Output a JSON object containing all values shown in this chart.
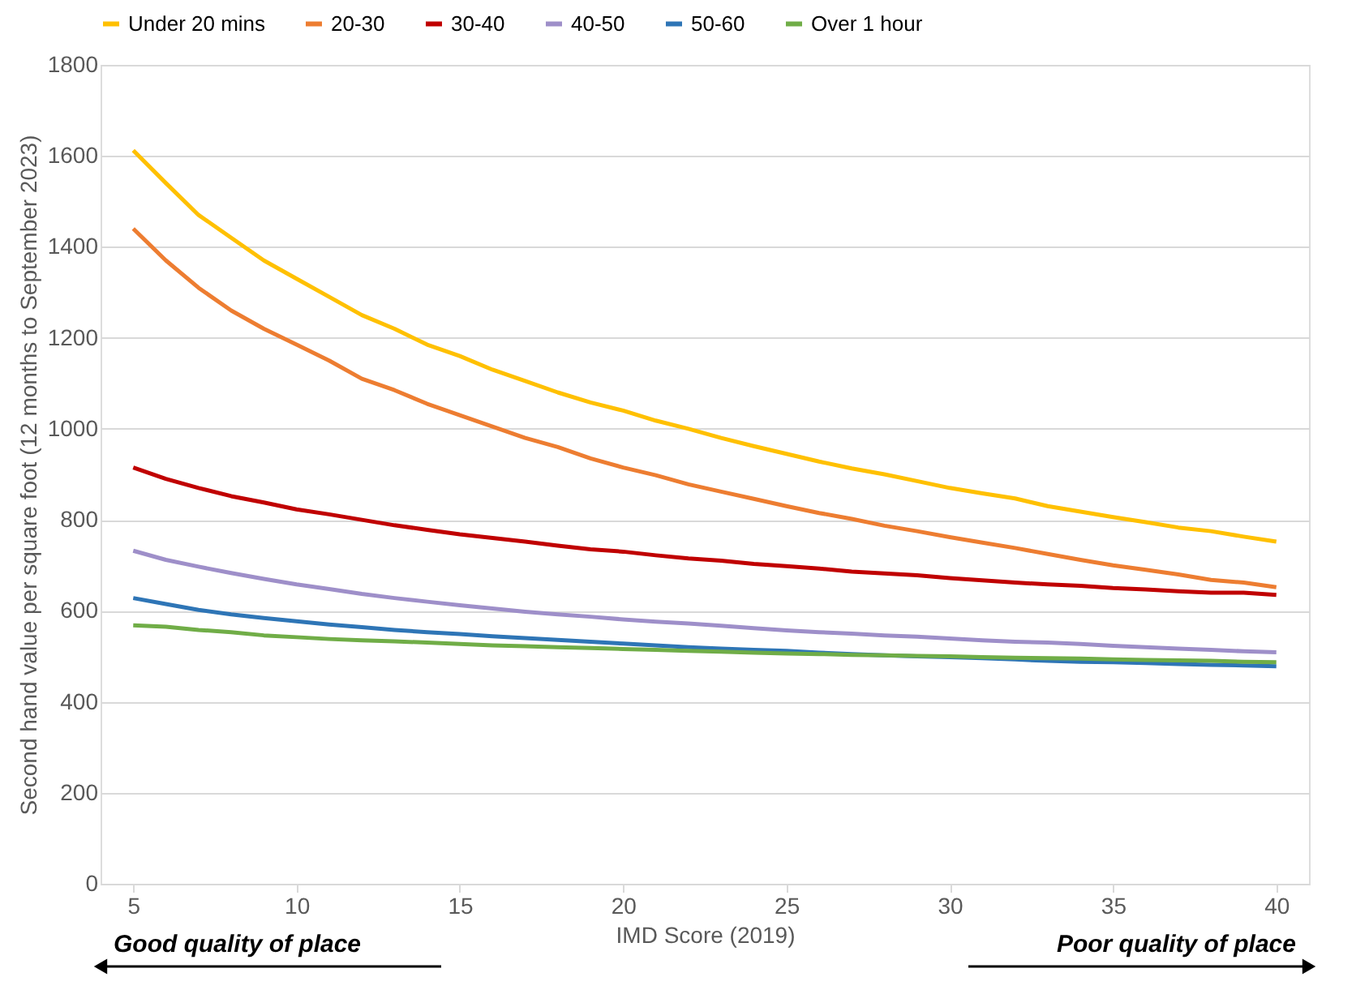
{
  "chart_data": {
    "type": "line",
    "xlabel": "IMD Score (2019)",
    "ylabel": "Second hand value per square foot (12 months to September 2023)",
    "x": [
      5,
      6,
      7,
      8,
      9,
      10,
      11,
      12,
      13,
      14,
      15,
      16,
      17,
      18,
      19,
      20,
      21,
      22,
      23,
      24,
      25,
      26,
      27,
      28,
      29,
      30,
      31,
      32,
      33,
      34,
      35,
      36,
      37,
      38,
      39,
      40
    ],
    "xlim": [
      4,
      41
    ],
    "xticks": [
      5,
      10,
      15,
      20,
      25,
      30,
      35,
      40
    ],
    "ylim": [
      0,
      1800
    ],
    "yticks": [
      0,
      200,
      400,
      600,
      800,
      1000,
      1200,
      1400,
      1600,
      1800
    ],
    "grid": "y",
    "legend": "top",
    "marker": "none",
    "line_style": "solid",
    "series": [
      {
        "name": "Under 20 mins",
        "color": "#ffc000",
        "values": [
          1612,
          1540,
          1470,
          1420,
          1370,
          1330,
          1290,
          1250,
          1220,
          1185,
          1160,
          1130,
          1105,
          1080,
          1058,
          1040,
          1018,
          1000,
          980,
          962,
          945,
          928,
          913,
          900,
          885,
          870,
          858,
          847,
          830,
          818,
          806,
          795,
          783,
          775,
          763,
          752
        ]
      },
      {
        "name": "20-30",
        "color": "#ed7d31",
        "values": [
          1440,
          1370,
          1310,
          1260,
          1220,
          1185,
          1150,
          1110,
          1085,
          1055,
          1030,
          1005,
          980,
          960,
          935,
          915,
          898,
          878,
          862,
          846,
          830,
          815,
          802,
          787,
          775,
          762,
          750,
          738,
          725,
          712,
          700,
          690,
          680,
          668,
          662,
          652
        ]
      },
      {
        "name": "30-40",
        "color": "#c00000",
        "values": [
          915,
          890,
          870,
          852,
          838,
          823,
          812,
          800,
          788,
          778,
          768,
          760,
          752,
          743,
          735,
          730,
          722,
          715,
          710,
          703,
          698,
          693,
          686,
          682,
          678,
          672,
          667,
          662,
          658,
          655,
          650,
          647,
          643,
          640,
          640,
          635
        ]
      },
      {
        "name": "40-50",
        "color": "#9e8fc9",
        "values": [
          732,
          712,
          697,
          683,
          670,
          658,
          648,
          637,
          628,
          620,
          612,
          605,
          598,
          592,
          587,
          581,
          576,
          572,
          567,
          562,
          557,
          553,
          550,
          546,
          543,
          539,
          535,
          532,
          530,
          527,
          523,
          520,
          517,
          514,
          511,
          509
        ]
      },
      {
        "name": "50-60",
        "color": "#2e75b6",
        "values": [
          628,
          615,
          602,
          592,
          584,
          577,
          570,
          564,
          558,
          553,
          549,
          544,
          540,
          536,
          532,
          528,
          524,
          520,
          517,
          514,
          512,
          508,
          505,
          502,
          500,
          498,
          496,
          493,
          490,
          488,
          487,
          485,
          483,
          481,
          480,
          478
        ]
      },
      {
        "name": "Over 1 hour",
        "color": "#70ad47",
        "values": [
          568,
          565,
          558,
          553,
          546,
          542,
          538,
          535,
          533,
          530,
          527,
          524,
          522,
          520,
          518,
          516,
          514,
          512,
          510,
          508,
          506,
          505,
          503,
          502,
          501,
          500,
          498,
          497,
          496,
          495,
          493,
          492,
          491,
          490,
          488,
          487
        ]
      }
    ],
    "annotations": [
      "Good quality of place",
      "Poor quality of place"
    ]
  }
}
